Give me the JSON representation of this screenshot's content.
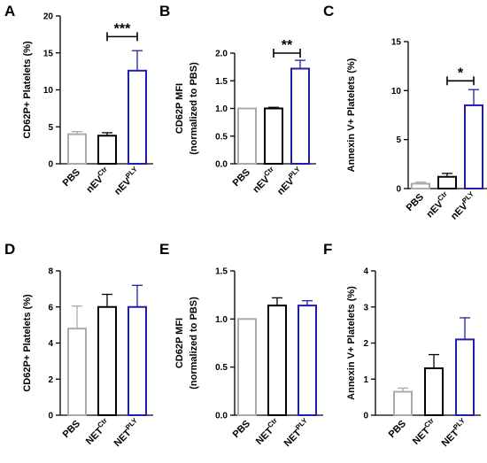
{
  "chart_data": [
    {
      "panel": "A",
      "type": "bar",
      "categories": [
        {
          "base": "PBS",
          "sup": ""
        },
        {
          "base": "nEV",
          "sup": "Ctr"
        },
        {
          "base": "nEV",
          "sup": "PLY"
        }
      ],
      "values": [
        4.0,
        3.8,
        12.6
      ],
      "errors": [
        0.35,
        0.4,
        2.7
      ],
      "ylabel": "CD62P+ Platelets (%)",
      "ylim": [
        0,
        20
      ],
      "yticks": [
        "0",
        "5",
        "10",
        "15",
        "20"
      ],
      "yticks_v": [
        0,
        5,
        10,
        15,
        20
      ],
      "colors": [
        "#aaaaaa",
        "#000000",
        "#1f1fa8"
      ],
      "significance": [
        {
          "from": 1,
          "to": 2,
          "label": "***",
          "y": 17.2
        }
      ]
    },
    {
      "panel": "B",
      "type": "bar",
      "categories": [
        {
          "base": "PBS",
          "sup": ""
        },
        {
          "base": "nEV",
          "sup": "Ctr"
        },
        {
          "base": "nEV",
          "sup": "PLY"
        }
      ],
      "values": [
        1.0,
        1.0,
        1.72
      ],
      "errors": [
        0.0,
        0.02,
        0.15
      ],
      "ylabel": "CD62P MFI",
      "ylabel2": "(normalized to PBS)",
      "ylim": [
        0,
        2.0
      ],
      "yticks": [
        "0.0",
        "0.5",
        "1.0",
        "1.5",
        "2.0"
      ],
      "yticks_v": [
        0,
        0.5,
        1.0,
        1.5,
        2.0
      ],
      "colors": [
        "#aaaaaa",
        "#000000",
        "#1f1fa8"
      ],
      "significance": [
        {
          "from": 1,
          "to": 2,
          "label": "**",
          "y": 2.0
        }
      ]
    },
    {
      "panel": "C",
      "type": "bar",
      "categories": [
        {
          "base": "PBS",
          "sup": ""
        },
        {
          "base": "nEV",
          "sup": "Ctr"
        },
        {
          "base": "nEV",
          "sup": "PLY"
        }
      ],
      "values": [
        0.5,
        1.2,
        8.5
      ],
      "errors": [
        0.15,
        0.35,
        1.6
      ],
      "ylabel": "Annexin V+ Platelets (%)",
      "ylim": [
        0,
        15
      ],
      "yticks": [
        "0",
        "5",
        "10",
        "15"
      ],
      "yticks_v": [
        0,
        5,
        10,
        15
      ],
      "colors": [
        "#aaaaaa",
        "#000000",
        "#1f1fa8"
      ],
      "significance": [
        {
          "from": 1,
          "to": 2,
          "label": "*",
          "y": 11.0
        }
      ]
    },
    {
      "panel": "D",
      "type": "bar",
      "categories": [
        {
          "base": "PBS",
          "sup": ""
        },
        {
          "base": "NET",
          "sup": "Ctr"
        },
        {
          "base": "NET",
          "sup": "PLY"
        }
      ],
      "values": [
        4.8,
        6.0,
        6.0
      ],
      "errors": [
        1.25,
        0.7,
        1.2
      ],
      "ylabel": "CD62P+ Platelets (%)",
      "ylim": [
        0,
        8
      ],
      "yticks": [
        "0",
        "2",
        "4",
        "6",
        "8"
      ],
      "yticks_v": [
        0,
        2,
        4,
        6,
        8
      ],
      "colors": [
        "#aaaaaa",
        "#000000",
        "#1f1fa8"
      ],
      "significance": []
    },
    {
      "panel": "E",
      "type": "bar",
      "categories": [
        {
          "base": "PBS",
          "sup": ""
        },
        {
          "base": "NET",
          "sup": "Ctr"
        },
        {
          "base": "NET",
          "sup": "PLY"
        }
      ],
      "values": [
        1.0,
        1.14,
        1.14
      ],
      "errors": [
        0.0,
        0.08,
        0.05
      ],
      "ylabel": "CD62P MFI",
      "ylabel2": "(normalized to PBS)",
      "ylim": [
        0,
        1.5
      ],
      "yticks": [
        "0.0",
        "0.5",
        "1.0",
        "1.5"
      ],
      "yticks_v": [
        0,
        0.5,
        1.0,
        1.5
      ],
      "colors": [
        "#aaaaaa",
        "#000000",
        "#1f1fa8"
      ],
      "significance": []
    },
    {
      "panel": "F",
      "type": "bar",
      "categories": [
        {
          "base": "PBS",
          "sup": ""
        },
        {
          "base": "NET",
          "sup": "Ctr"
        },
        {
          "base": "NET",
          "sup": "PLY"
        }
      ],
      "values": [
        0.65,
        1.3,
        2.1
      ],
      "errors": [
        0.1,
        0.38,
        0.6
      ],
      "ylabel": "Annexin V+ Platelets (%)",
      "ylim": [
        0,
        4
      ],
      "yticks": [
        "0",
        "1",
        "2",
        "3",
        "4"
      ],
      "yticks_v": [
        0,
        1,
        2,
        3,
        4
      ],
      "colors": [
        "#aaaaaa",
        "#000000",
        "#1f1fa8"
      ],
      "significance": []
    }
  ]
}
